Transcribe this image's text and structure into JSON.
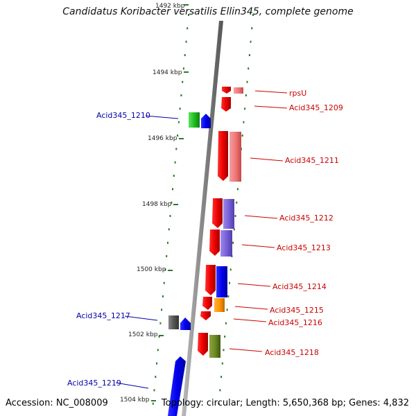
{
  "title": "Candidatus Koribacter versatilis Ellin345, complete genome",
  "footer": {
    "accession": "Accession: NC_008009",
    "topology": "Topology: circular; Length: 5,650,368 bp; Genes: 4,832"
  },
  "scale_labels": [
    "1492 kbp",
    "1494 kbp",
    "1496 kbp",
    "1498 kbp",
    "1500 kbp",
    "1502 kbp",
    "1504 kbp"
  ],
  "right_genes": [
    "rpsU",
    "Acid345_1209",
    "Acid345_1211",
    "Acid345_1212",
    "Acid345_1213",
    "Acid345_1214",
    "Acid345_1215",
    "Acid345_1216",
    "Acid345_1218"
  ],
  "left_genes": [
    "Acid345_1210",
    "Acid345_1217",
    "Acid345_1219"
  ],
  "colors": {
    "forward_label": "#cc0000",
    "reverse_label": "#0000aa",
    "backbone": "#888888",
    "tick": "#2a7a2a"
  }
}
